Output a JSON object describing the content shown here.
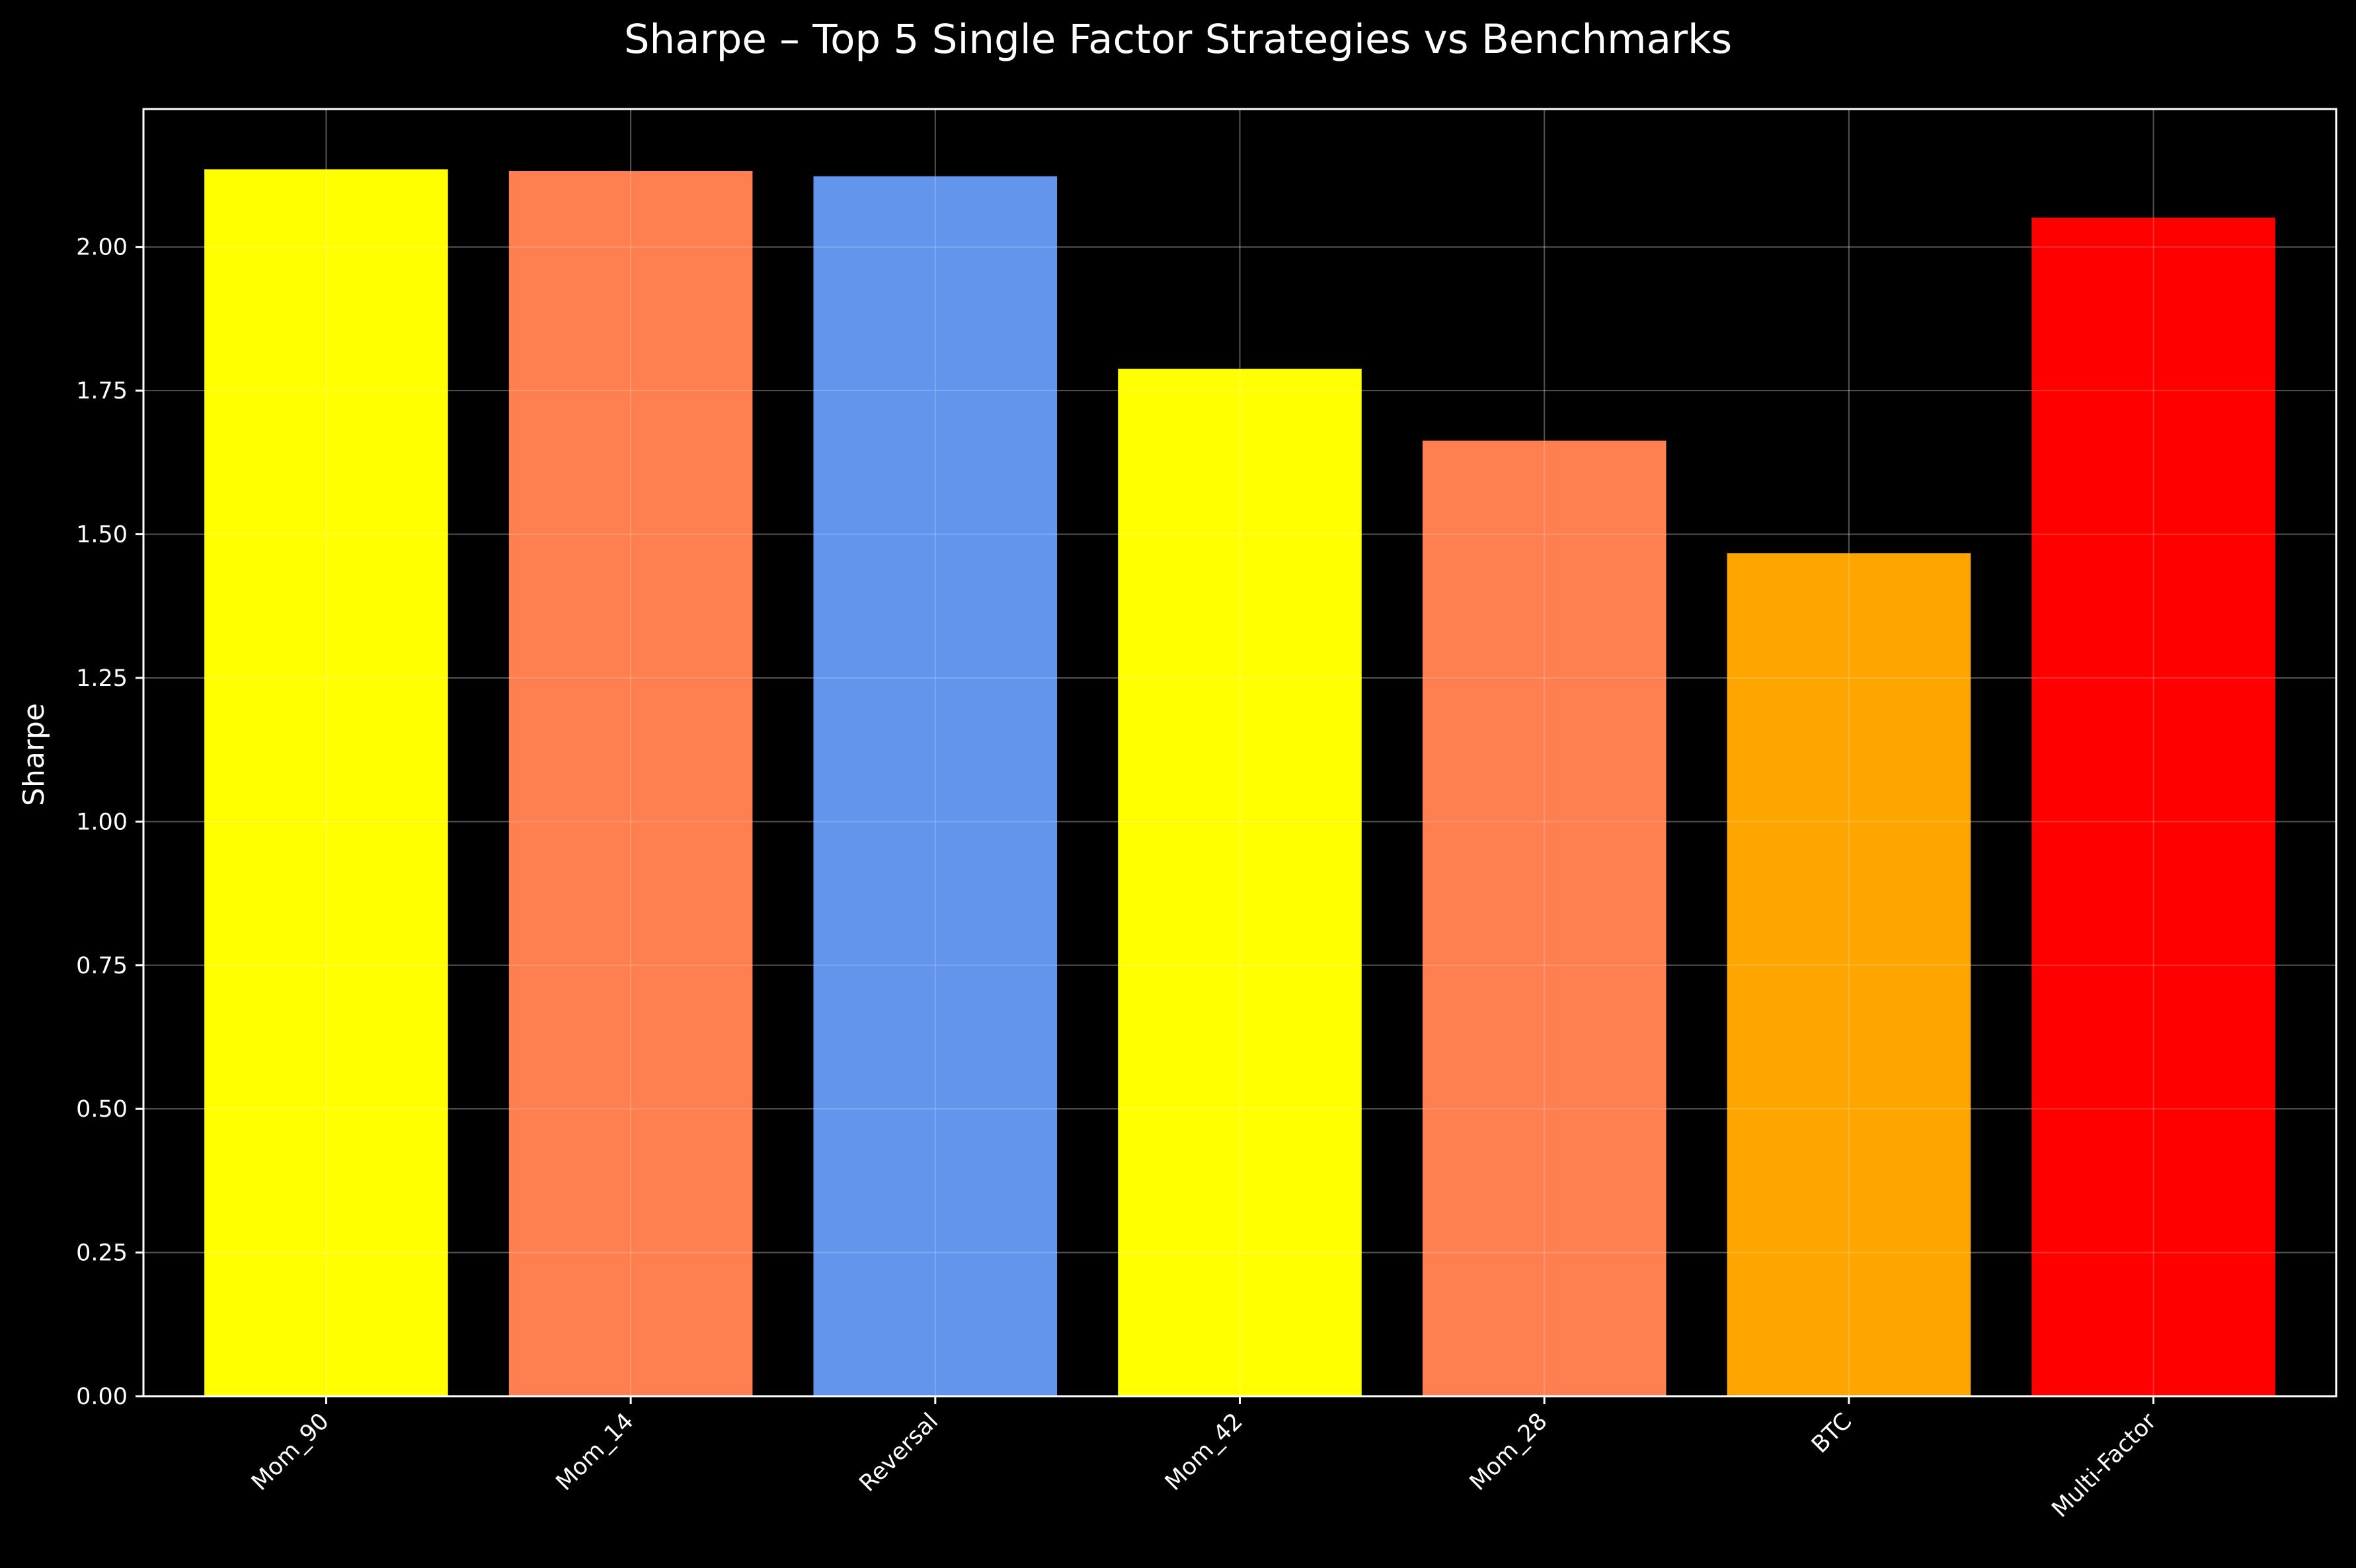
{
  "chart_data": {
    "type": "bar",
    "title": "Sharpe – Top 5 Single Factor Strategies vs Benchmarks",
    "xlabel": "",
    "ylabel": "Sharpe",
    "categories": [
      "Mom_90",
      "Mom_14",
      "Reversal",
      "Mom_42",
      "Mom_28",
      "BTC",
      "Multi-Factor"
    ],
    "values": [
      2.135,
      2.132,
      2.123,
      1.788,
      1.663,
      1.467,
      2.051
    ],
    "colors": [
      "#ffff00",
      "#ff7f50",
      "#6495ed",
      "#ffff00",
      "#ff7f50",
      "#ffa500",
      "#ff0000"
    ],
    "ylim": [
      0,
      2.24
    ],
    "yticks": [
      "0.00",
      "0.25",
      "0.50",
      "0.75",
      "1.00",
      "1.25",
      "1.50",
      "1.75",
      "2.00"
    ],
    "ytick_values": [
      0,
      0.25,
      0.5,
      0.75,
      1.0,
      1.25,
      1.5,
      1.75,
      2.0
    ],
    "grid": true,
    "background": "#000000",
    "text_color": "#ffffff"
  }
}
